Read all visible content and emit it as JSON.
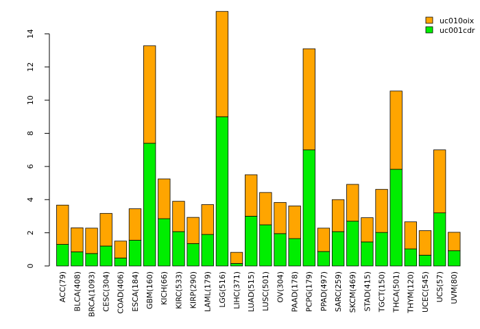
{
  "chart_data": {
    "type": "bar",
    "stacked": true,
    "title": "",
    "xlabel": "",
    "ylabel": "",
    "ylim": [
      0,
      15.4
    ],
    "yticks": [
      0,
      2,
      4,
      6,
      8,
      10,
      12,
      14
    ],
    "categories": [
      "ACC(79)",
      "BLCA(408)",
      "BRCA(1093)",
      "CESC(304)",
      "COAD(406)",
      "ESCA(184)",
      "GBM(160)",
      "KICH(66)",
      "KIRC(533)",
      "KIRP(290)",
      "LAML(179)",
      "LGG(516)",
      "LIHC(371)",
      "LUAD(515)",
      "LUSC(501)",
      "OV(304)",
      "PAAD(178)",
      "PCPG(179)",
      "PPAD(497)",
      "SARC(259)",
      "SKCM(469)",
      "STAD(415)",
      "TGCT(150)",
      "THCA(501)",
      "THYM(120)",
      "UCEC(545)",
      "UCS(57)",
      "UVM(80)"
    ],
    "series": [
      {
        "name": "uc001cdr",
        "color": "#00ee00",
        "values": [
          1.3,
          0.85,
          0.75,
          1.2,
          0.48,
          1.55,
          7.4,
          2.85,
          2.07,
          1.35,
          1.9,
          9.0,
          0.15,
          3.0,
          2.48,
          1.95,
          1.65,
          7.0,
          0.87,
          2.07,
          2.7,
          1.45,
          2.02,
          5.83,
          1.03,
          0.65,
          3.2,
          0.92
        ]
      },
      {
        "name": "uc010oix",
        "color": "#ffa500",
        "values": [
          2.37,
          1.45,
          1.53,
          1.97,
          1.02,
          1.9,
          5.88,
          2.4,
          1.83,
          1.58,
          1.8,
          6.35,
          0.67,
          2.5,
          1.95,
          1.88,
          1.97,
          6.1,
          1.41,
          1.93,
          2.22,
          1.46,
          2.6,
          4.72,
          1.63,
          1.48,
          3.8,
          1.11
        ]
      }
    ],
    "legend": {
      "position": "top-right",
      "order": [
        "uc010oix",
        "uc001cdr"
      ]
    }
  }
}
